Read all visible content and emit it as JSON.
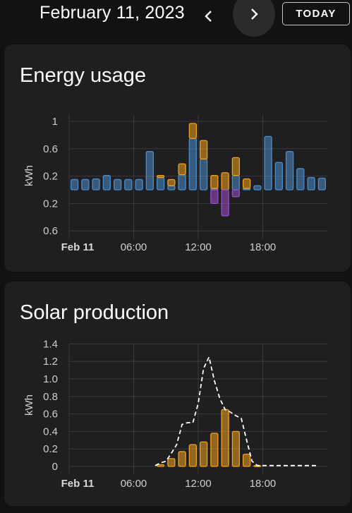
{
  "header": {
    "date": "February 11, 2023",
    "prev_icon": "chevron-left-icon",
    "next_icon": "chevron-right-icon",
    "today_label": "TODAY"
  },
  "colors": {
    "grid_consumption": "#4a8dc9",
    "solar": "#f0a01e",
    "return_to_grid": "#9a4fc7",
    "forecast_line": "#ffffff"
  },
  "chart_data": [
    {
      "type": "bar",
      "title": "Energy usage",
      "ylabel": "kWh",
      "x_tick_labels": [
        "Feb 11",
        "06:00",
        "12:00",
        "18:00"
      ],
      "x_tick_hours": [
        0,
        6,
        12,
        18
      ],
      "y_tick_labels": [
        "1",
        "0.6",
        "0.2",
        "0.2",
        "0.6"
      ],
      "y_tick_values": [
        1,
        0.6,
        0.2,
        -0.2,
        -0.6
      ],
      "ylim": [
        -0.65,
        1.1
      ],
      "hours": [
        0,
        1,
        2,
        3,
        4,
        5,
        6,
        7,
        8,
        9,
        10,
        11,
        12,
        13,
        14,
        15,
        16,
        17,
        18,
        19,
        20,
        21,
        22,
        23
      ],
      "series": [
        {
          "name": "grid_consumption",
          "stack": "pos",
          "values": [
            0.15,
            0.15,
            0.16,
            0.21,
            0.15,
            0.15,
            0.15,
            0.56,
            0.18,
            0.06,
            0.22,
            0.75,
            0.45,
            0.02,
            0.0,
            0.21,
            0.02,
            0.06,
            0.78,
            0.4,
            0.56,
            0.31,
            0.18,
            0.17
          ]
        },
        {
          "name": "solar_consumed",
          "stack": "pos",
          "values": [
            0,
            0,
            0,
            0,
            0,
            0,
            0,
            0,
            0.03,
            0.09,
            0.16,
            0.22,
            0.27,
            0.19,
            0.25,
            0.26,
            0.14,
            0,
            0,
            0,
            0,
            0,
            0,
            0
          ]
        },
        {
          "name": "return_to_grid",
          "stack": "neg",
          "values": [
            0,
            0,
            0,
            0,
            0,
            0,
            0,
            0,
            0,
            0,
            0,
            0,
            0,
            -0.2,
            -0.38,
            -0.1,
            0,
            0,
            0,
            0,
            0,
            0,
            0,
            0
          ]
        }
      ]
    },
    {
      "type": "bar",
      "title": "Solar production",
      "ylabel": "kWh",
      "x_tick_labels": [
        "Feb 11",
        "06:00",
        "12:00",
        "18:00"
      ],
      "x_tick_hours": [
        0,
        6,
        12,
        18
      ],
      "y_tick_labels": [
        "1.4",
        "1.2",
        "1.0",
        "0.8",
        "0.6",
        "0.4",
        "0.2",
        "0"
      ],
      "y_tick_values": [
        1.4,
        1.2,
        1.0,
        0.8,
        0.6,
        0.4,
        0.2,
        0
      ],
      "ylim": [
        0,
        1.4
      ],
      "hours": [
        8,
        9,
        10,
        11,
        12,
        13,
        14,
        15,
        16,
        17
      ],
      "values": [
        0.02,
        0.09,
        0.17,
        0.25,
        0.28,
        0.38,
        0.65,
        0.4,
        0.14,
        0.01
      ],
      "forecast": {
        "x": [
          7.5,
          8,
          8.5,
          9,
          9.5,
          10,
          10.5,
          11,
          11.5,
          12,
          12.5,
          13,
          13.5,
          14,
          14.5,
          15,
          15.5,
          16,
          16.5,
          17,
          17.5,
          18,
          19,
          20,
          21,
          22,
          22.5
        ],
        "y": [
          0.01,
          0.04,
          0.06,
          0.15,
          0.25,
          0.48,
          0.5,
          0.5,
          0.72,
          1.12,
          1.25,
          0.98,
          0.78,
          0.65,
          0.62,
          0.58,
          0.55,
          0.3,
          0.06,
          0.01,
          0.01,
          0.01,
          0.01,
          0.01,
          0.01,
          0.01,
          0.01
        ]
      }
    }
  ]
}
